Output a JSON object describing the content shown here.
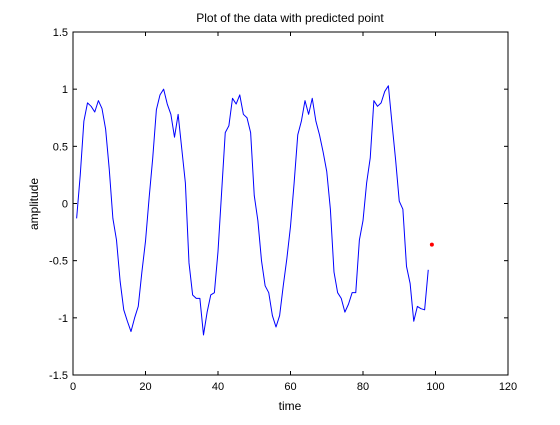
{
  "chart_data": {
    "type": "line",
    "title": "Plot of the data with predicted point",
    "xlabel": "time",
    "ylabel": "amplitude",
    "xlim": [
      0,
      120
    ],
    "ylim": [
      -1.5,
      1.5
    ],
    "xticks": [
      0,
      20,
      40,
      60,
      80,
      100,
      120
    ],
    "yticks": [
      -1.5,
      -1,
      -0.5,
      0,
      0.5,
      1,
      1.5
    ],
    "xtick_labels": [
      "0",
      "20",
      "40",
      "60",
      "80",
      "100",
      "120"
    ],
    "ytick_labels": [
      "-1.5",
      "-1",
      "-0.5",
      "0",
      "0.5",
      "1",
      "1.5"
    ],
    "grid": false,
    "legend": "none",
    "series": [
      {
        "color": "#0000ff",
        "style": "line",
        "x": [
          1,
          2,
          3,
          4,
          5,
          6,
          7,
          8,
          9,
          10,
          11,
          12,
          13,
          14,
          15,
          16,
          17,
          18,
          19,
          20,
          21,
          22,
          23,
          24,
          25,
          26,
          27,
          28,
          29,
          30,
          31,
          32,
          33,
          34,
          35,
          36,
          37,
          38,
          39,
          40,
          41,
          42,
          43,
          44,
          45,
          46,
          47,
          48,
          49,
          50,
          51,
          52,
          53,
          54,
          55,
          56,
          57,
          58,
          59,
          60,
          61,
          62,
          63,
          64,
          65,
          66,
          67,
          68,
          69,
          70,
          71,
          72,
          73,
          74,
          75,
          76,
          77,
          78,
          79,
          80,
          81,
          82,
          83,
          84,
          85,
          86,
          87,
          88,
          89,
          90,
          91,
          92,
          93,
          94,
          95,
          96,
          97,
          98
        ],
        "y": [
          -0.13,
          0.25,
          0.72,
          0.88,
          0.85,
          0.8,
          0.9,
          0.83,
          0.65,
          0.3,
          -0.13,
          -0.32,
          -0.68,
          -0.93,
          -1.03,
          -1.12,
          -1.0,
          -0.9,
          -0.6,
          -0.33,
          0.05,
          0.4,
          0.82,
          0.95,
          1.0,
          0.87,
          0.78,
          0.58,
          0.78,
          0.48,
          0.18,
          -0.52,
          -0.8,
          -0.83,
          -0.83,
          -1.15,
          -0.95,
          -0.8,
          -0.78,
          -0.42,
          0.1,
          0.62,
          0.68,
          0.92,
          0.87,
          0.95,
          0.78,
          0.75,
          0.62,
          0.07,
          -0.15,
          -0.5,
          -0.72,
          -0.78,
          -0.98,
          -1.08,
          -0.98,
          -0.72,
          -0.48,
          -0.2,
          0.18,
          0.6,
          0.72,
          0.9,
          0.78,
          0.92,
          0.72,
          0.6,
          0.45,
          0.28,
          -0.05,
          -0.6,
          -0.78,
          -0.83,
          -0.95,
          -0.88,
          -0.78,
          -0.78,
          -0.32,
          -0.15,
          0.18,
          0.4,
          0.9,
          0.85,
          0.88,
          0.98,
          1.03,
          0.7,
          0.38,
          0.02,
          -0.05,
          -0.55,
          -0.7,
          -1.03,
          -0.9,
          -0.92,
          -0.93,
          -0.58
        ]
      },
      {
        "color": "#ff0000",
        "style": "marker",
        "x": [
          99
        ],
        "y": [
          -0.36
        ]
      }
    ]
  }
}
